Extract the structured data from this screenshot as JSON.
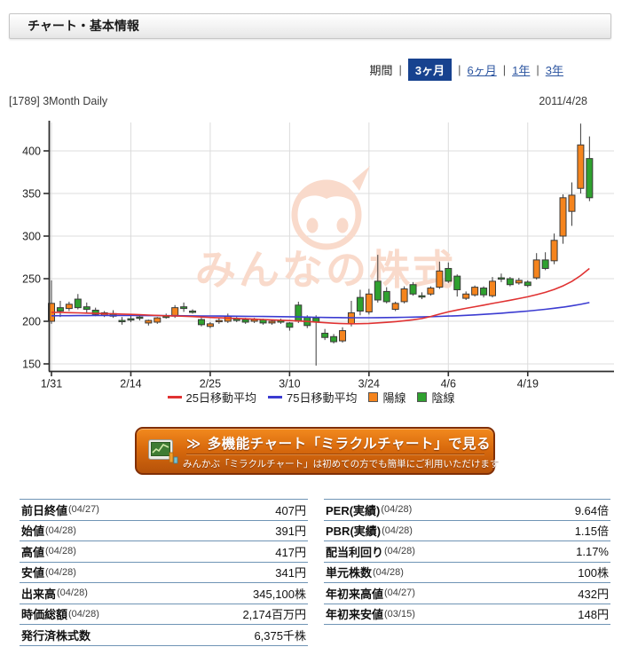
{
  "header": {
    "title": "チャート・基本情報"
  },
  "period": {
    "label": "期間",
    "options": [
      {
        "label": "3ヶ月",
        "selected": true
      },
      {
        "label": "6ヶ月",
        "selected": false
      },
      {
        "label": "1年",
        "selected": false
      },
      {
        "label": "3年",
        "selected": false
      }
    ]
  },
  "chart_header": {
    "left": "[1789] 3Month Daily",
    "right": "2011/4/28"
  },
  "watermark": {
    "text": "みんなの株式",
    "color": "#f9dacb"
  },
  "legend": [
    {
      "label": "25日移動平均",
      "swatch": "line",
      "color": "#e03232"
    },
    {
      "label": "75日移動平均",
      "swatch": "line",
      "color": "#3b3bd1"
    },
    {
      "label": "陽線",
      "swatch": "square",
      "color": "#f5841d"
    },
    {
      "label": "陰線",
      "swatch": "square",
      "color": "#2fa12f"
    }
  ],
  "banner": {
    "arrow": "≫",
    "main": "多機能チャート「ミラクルチャート」で見る",
    "sub": "みんかぶ「ミラクルチャート」は初めての方でも簡単にご利用いただけます"
  },
  "tables": {
    "left": [
      {
        "label": "前日終値",
        "date": "(04/27)",
        "value": "407円"
      },
      {
        "label": "始値",
        "date": "(04/28)",
        "value": "391円"
      },
      {
        "label": "高値",
        "date": "(04/28)",
        "value": "417円"
      },
      {
        "label": "安値",
        "date": "(04/28)",
        "value": "341円"
      },
      {
        "label": "出来高",
        "date": "(04/28)",
        "value": "345,100株"
      },
      {
        "label": "時価総額",
        "date": "(04/28)",
        "value": "2,174百万円"
      },
      {
        "label": "発行済株式数",
        "date": "",
        "value": "6,375千株"
      }
    ],
    "right": [
      {
        "label": "PER(実績)",
        "date": "(04/28)",
        "value": "9.64倍"
      },
      {
        "label": "PBR(実績)",
        "date": "(04/28)",
        "value": "1.15倍"
      },
      {
        "label": "配当利回り",
        "date": "(04/28)",
        "value": "1.17%"
      },
      {
        "label": "単元株数",
        "date": "(04/28)",
        "value": "100株"
      },
      {
        "label": "年初来高値",
        "date": "(04/27)",
        "value": "432円"
      },
      {
        "label": "年初来安値",
        "date": "(03/15)",
        "value": "148円"
      }
    ]
  },
  "chart_data": {
    "type": "candlestick",
    "title": "[1789] 3Month Daily",
    "as_of": "2011/4/28",
    "ylim": [
      140,
      445
    ],
    "yticks": [
      150,
      200,
      250,
      300,
      350,
      400
    ],
    "xtick_indices": [
      0,
      9,
      18,
      27,
      36,
      45,
      54
    ],
    "xtick_labels": [
      "1/31",
      "2/14",
      "2/25",
      "3/10",
      "3/24",
      "4/6",
      "4/19"
    ],
    "dates": [
      "1/31",
      "2/1",
      "2/2",
      "2/3",
      "2/4",
      "2/7",
      "2/8",
      "2/9",
      "2/10",
      "2/14",
      "2/15",
      "2/16",
      "2/17",
      "2/18",
      "2/21",
      "2/22",
      "2/23",
      "2/24",
      "2/25",
      "2/28",
      "3/1",
      "3/2",
      "3/3",
      "3/4",
      "3/7",
      "3/8",
      "3/9",
      "3/10",
      "3/11",
      "3/14",
      "3/15",
      "3/16",
      "3/17",
      "3/18",
      "3/22",
      "3/23",
      "3/24",
      "3/25",
      "3/28",
      "3/29",
      "3/30",
      "3/31",
      "4/1",
      "4/4",
      "4/5",
      "4/6",
      "4/7",
      "4/8",
      "4/11",
      "4/12",
      "4/13",
      "4/14",
      "4/15",
      "4/18",
      "4/19",
      "4/20",
      "4/21",
      "4/22",
      "4/25",
      "4/26",
      "4/27",
      "4/28"
    ],
    "ohlc": [
      [
        200,
        248,
        197,
        221
      ],
      [
        216,
        224,
        205,
        212
      ],
      [
        215,
        223,
        212,
        220
      ],
      [
        226,
        232,
        214,
        216
      ],
      [
        217,
        222,
        210,
        214
      ],
      [
        213,
        216,
        206,
        208
      ],
      [
        207,
        212,
        205,
        210
      ],
      [
        209,
        213,
        204,
        206
      ],
      [
        201,
        205,
        196,
        200
      ],
      [
        203,
        207,
        199,
        202
      ],
      [
        205,
        208,
        201,
        204
      ],
      [
        198,
        202,
        195,
        201
      ],
      [
        199,
        205,
        197,
        204
      ],
      [
        206,
        209,
        203,
        205
      ],
      [
        206,
        219,
        204,
        216
      ],
      [
        217,
        222,
        211,
        215
      ],
      [
        212,
        214,
        209,
        211
      ],
      [
        202,
        204,
        194,
        196
      ],
      [
        194,
        199,
        192,
        197
      ],
      [
        200,
        204,
        197,
        201
      ],
      [
        200,
        209,
        198,
        206
      ],
      [
        203,
        205,
        199,
        201
      ],
      [
        202,
        204,
        197,
        199
      ],
      [
        200,
        204,
        198,
        202
      ],
      [
        202,
        203,
        196,
        198
      ],
      [
        198,
        202,
        196,
        200
      ],
      [
        201,
        203,
        197,
        199
      ],
      [
        198,
        199,
        189,
        193
      ],
      [
        219,
        223,
        198,
        200
      ],
      [
        205,
        207,
        192,
        195
      ],
      [
        204,
        207,
        148,
        199
      ],
      [
        186,
        191,
        178,
        181
      ],
      [
        182,
        185,
        174,
        176
      ],
      [
        177,
        193,
        175,
        189
      ],
      [
        197,
        224,
        194,
        210
      ],
      [
        228,
        237,
        207,
        212
      ],
      [
        211,
        238,
        208,
        232
      ],
      [
        247,
        278,
        222,
        225
      ],
      [
        235,
        240,
        221,
        223
      ],
      [
        214,
        223,
        212,
        221
      ],
      [
        223,
        241,
        221,
        238
      ],
      [
        243,
        246,
        230,
        232
      ],
      [
        230,
        234,
        226,
        229
      ],
      [
        232,
        241,
        230,
        239
      ],
      [
        240,
        270,
        238,
        259
      ],
      [
        262,
        269,
        245,
        247
      ],
      [
        253,
        255,
        229,
        237
      ],
      [
        227,
        235,
        225,
        232
      ],
      [
        231,
        242,
        229,
        240
      ],
      [
        239,
        241,
        228,
        231
      ],
      [
        230,
        252,
        228,
        247
      ],
      [
        251,
        256,
        246,
        250
      ],
      [
        250,
        252,
        241,
        243
      ],
      [
        245,
        251,
        243,
        248
      ],
      [
        246,
        248,
        240,
        242
      ],
      [
        251,
        280,
        249,
        272
      ],
      [
        272,
        281,
        260,
        262
      ],
      [
        271,
        303,
        267,
        295
      ],
      [
        300,
        349,
        291,
        345
      ],
      [
        329,
        363,
        312,
        348
      ],
      [
        356,
        432,
        350,
        407
      ],
      [
        391,
        417,
        341,
        345
      ]
    ],
    "ma25": [
      210.5,
      210.3,
      210.1,
      209.9,
      209.6,
      209.3,
      209.0,
      208.7,
      208.4,
      208.1,
      207.7,
      207.3,
      206.9,
      206.5,
      206.2,
      205.9,
      205.5,
      205.0,
      204.5,
      204.1,
      203.7,
      203.3,
      202.9,
      202.5,
      202.1,
      201.7,
      201.3,
      200.8,
      200.3,
      199.8,
      199.1,
      198.3,
      197.7,
      197.3,
      197.1,
      197.2,
      197.5,
      198.1,
      198.8,
      199.6,
      200.6,
      201.8,
      203.2,
      205.6,
      208.4,
      211.0,
      213.2,
      215.2,
      217.1,
      219.0,
      220.9,
      222.8,
      224.7,
      226.7,
      228.8,
      231.2,
      234.0,
      237.4,
      241.6,
      246.8,
      253.6,
      262.0
    ],
    "ma75": [
      206.5,
      206.6,
      206.6,
      206.7,
      206.7,
      206.8,
      206.8,
      206.8,
      206.8,
      206.8,
      206.8,
      206.7,
      206.7,
      206.6,
      206.6,
      206.5,
      206.4,
      206.3,
      206.2,
      206.1,
      206.0,
      205.9,
      205.8,
      205.7,
      205.6,
      205.5,
      205.4,
      205.3,
      205.1,
      204.9,
      204.7,
      204.5,
      204.4,
      204.3,
      204.2,
      204.2,
      204.2,
      204.3,
      204.4,
      204.5,
      204.7,
      204.9,
      205.1,
      205.4,
      205.7,
      206.1,
      206.5,
      207.0,
      207.5,
      208.1,
      208.8,
      209.5,
      210.3,
      211.1,
      212.0,
      213.0,
      214.1,
      215.3,
      216.6,
      218.1,
      219.9,
      222.0
    ],
    "series_names": {
      "ma25": "25日移動平均",
      "ma75": "75日移動平均",
      "up": "陽線",
      "down": "陰線"
    },
    "colors": {
      "up": "#f5841d",
      "down": "#2fa12f",
      "ma25": "#e03232",
      "ma75": "#3b3bd1",
      "grid": "#dcdcdc",
      "axis": "#2e2e2e",
      "candle_stroke": "#3a3a3a"
    }
  }
}
